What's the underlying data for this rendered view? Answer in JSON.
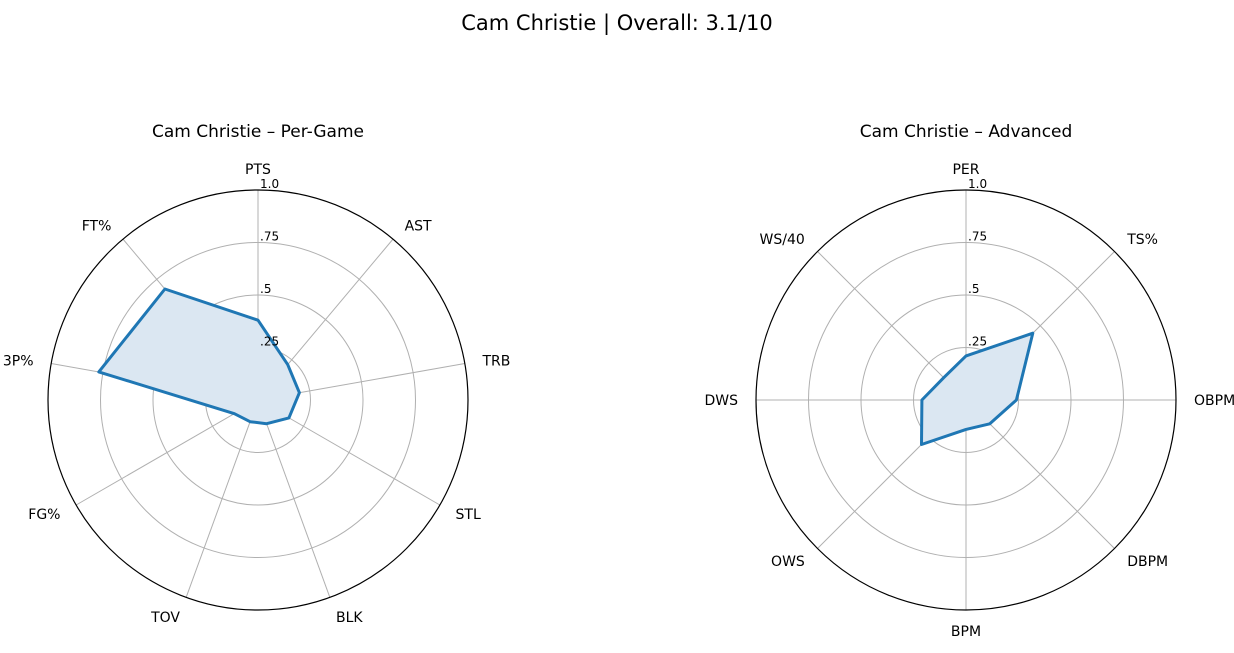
{
  "title": "Cam Christie | Overall: 3.1/10",
  "colors": {
    "series": "#1f77b4",
    "fill": "#dbe7f2"
  },
  "chart_data": [
    {
      "type": "radar",
      "title": "Cam Christie – Per-Game",
      "axes": [
        "PTS",
        "AST",
        "TRB",
        "STL",
        "BLK",
        "TOV",
        "FG%",
        "3P%",
        "FT%"
      ],
      "values": [
        0.38,
        0.22,
        0.2,
        0.17,
        0.12,
        0.11,
        0.13,
        0.77,
        0.69
      ],
      "rlim": [
        0,
        1
      ],
      "rticks": [
        0.25,
        0.5,
        0.75,
        1.0
      ],
      "rtick_labels": [
        ".25",
        ".5",
        ".75",
        "1.0"
      ],
      "grid": true
    },
    {
      "type": "radar",
      "title": "Cam Christie – Advanced",
      "axes": [
        "PER",
        "TS%",
        "OBPM",
        "DBPM",
        "BPM",
        "OWS",
        "DWS",
        "WS/40"
      ],
      "values": [
        0.21,
        0.45,
        0.24,
        0.16,
        0.14,
        0.3,
        0.21,
        0.15
      ],
      "rlim": [
        0,
        1
      ],
      "rticks": [
        0.25,
        0.5,
        0.75,
        1.0
      ],
      "rtick_labels": [
        ".25",
        ".5",
        ".75",
        "1.0"
      ],
      "grid": true
    }
  ]
}
